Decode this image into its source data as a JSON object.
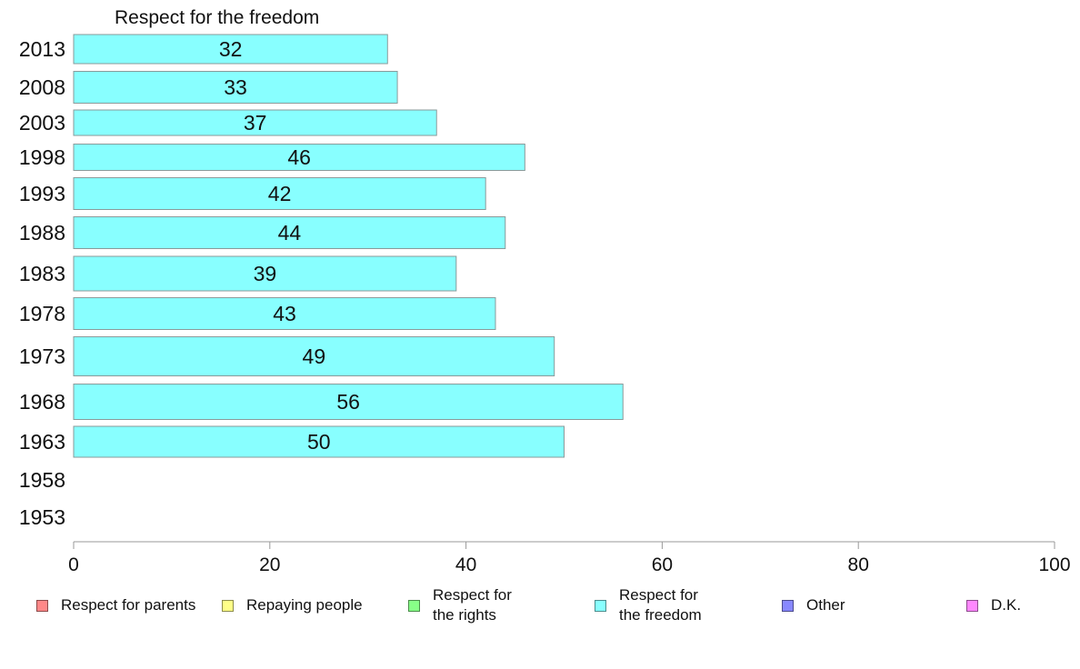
{
  "chart_data": {
    "type": "bar",
    "orientation": "horizontal",
    "title": "Respect for the freedom",
    "xlabel": "",
    "ylabel": "",
    "xlim": [
      0,
      100
    ],
    "x_ticks": [
      "0",
      "20",
      "40",
      "60",
      "80",
      "100"
    ],
    "categories": [
      "2013",
      "2008",
      "2003",
      "1998",
      "1993",
      "1988",
      "1983",
      "1978",
      "1973",
      "1968",
      "1963",
      "1958",
      "1953"
    ],
    "series": [
      {
        "name": "Respect for the freedom",
        "color": "#88ffff",
        "values": [
          32,
          33,
          37,
          46,
          42,
          44,
          39,
          43,
          49,
          56,
          50,
          null,
          null
        ],
        "labels": [
          "32",
          "33",
          "37",
          "46",
          "42",
          "44",
          "39",
          "43",
          "49",
          "56",
          "50",
          "",
          ""
        ]
      }
    ],
    "grid": false,
    "legend_position": "bottom",
    "legend": [
      {
        "label": "Respect for parents",
        "color": "#ff8888"
      },
      {
        "label": "Repaying people",
        "color": "#ffff88"
      },
      {
        "label": "Respect for\nthe rights",
        "color": "#88ff88"
      },
      {
        "label": "Respect for\nthe freedom",
        "color": "#88ffff"
      },
      {
        "label": "Other",
        "color": "#8888ff"
      },
      {
        "label": "D.K.",
        "color": "#ff88ff"
      }
    ]
  }
}
